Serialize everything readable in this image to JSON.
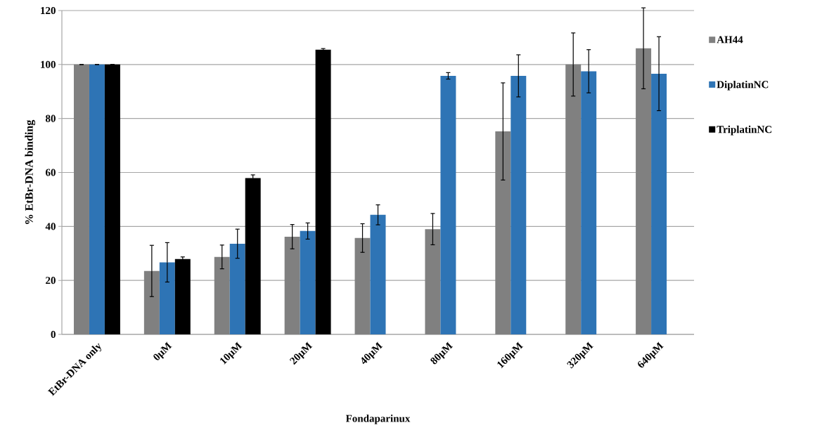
{
  "chart_data": {
    "type": "bar",
    "xlabel": "Fondaparinux",
    "ylabel": "% EtBr-DNA  binding",
    "categories": [
      "EtBr-DNA only",
      "0μM",
      "10μM",
      "20μM",
      "40μM",
      "80μM",
      "160μM",
      "320μM",
      "640μM"
    ],
    "series": [
      {
        "name": "AH44",
        "color": "#808080",
        "values": [
          100,
          23.5,
          28.7,
          36.2,
          35.7,
          39,
          75.2,
          100,
          106
        ],
        "errors": [
          null,
          9.5,
          4.4,
          4.5,
          5.3,
          5.8,
          18,
          11.7,
          15
        ]
      },
      {
        "name": "DiplatinNC",
        "color": "#2e74b5",
        "values": [
          100,
          26.7,
          33.6,
          38.3,
          44.3,
          95.8,
          95.8,
          97.5,
          96.6
        ],
        "errors": [
          null,
          7.3,
          5.4,
          3,
          3.7,
          1.2,
          7.8,
          8,
          13.7
        ]
      },
      {
        "name": "TriplatinNC",
        "color": "#000000",
        "values": [
          100,
          27.9,
          57.9,
          105.5,
          null,
          null,
          null,
          null,
          null
        ],
        "errors": [
          null,
          0.8,
          1.2,
          0.4,
          null,
          null,
          null,
          null,
          null
        ]
      }
    ],
    "ylim": [
      0,
      120
    ],
    "yticks": [
      0,
      20,
      40,
      60,
      80,
      100,
      120
    ],
    "grid": "y",
    "legend": "right"
  }
}
